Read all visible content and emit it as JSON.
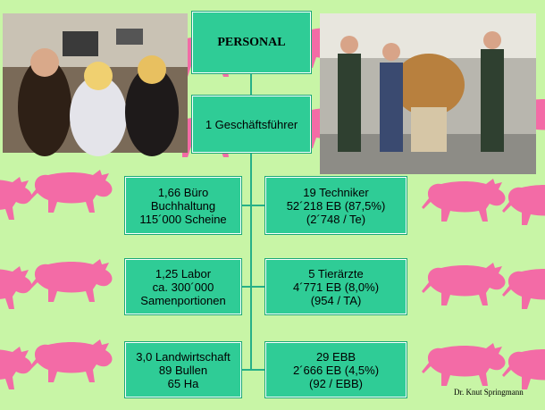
{
  "nodes": [
    {
      "lines": [
        "PERSONAL"
      ]
    },
    {
      "lines": [
        "1 Geschäftsführer"
      ]
    },
    {
      "lines": [
        "1,66 Büro",
        "Buchhaltung",
        "115´000 Scheine"
      ]
    },
    {
      "lines": [
        "19 Techniker",
        "52´218 EB (87,5%)",
        "(2´748 / Te)"
      ]
    },
    {
      "lines": [
        "1,25 Labor",
        "ca. 300´000",
        "Samenportionen"
      ]
    },
    {
      "lines": [
        "5 Tierärzte",
        "4´771 EB (8,0%)",
        "(954 / TA)"
      ]
    },
    {
      "lines": [
        "3,0 Landwirtschaft",
        "89 Bullen",
        "65 Ha"
      ]
    },
    {
      "lines": [
        "29 EBB",
        "2´666 EB (4,5%)",
        "(92 / EBB)"
      ]
    }
  ],
  "footer": "Dr. Knut Springmann"
}
